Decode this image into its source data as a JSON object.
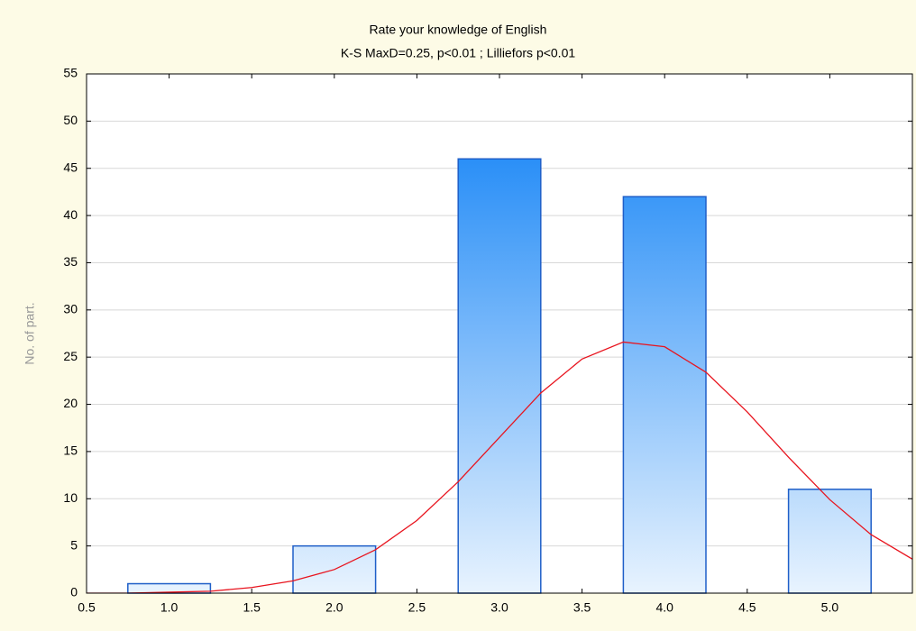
{
  "chart_data": {
    "type": "histogram",
    "title": "Rate your knowledge of English",
    "subtitle": "K-S MaxD=0.25, p<0.01 ; Lilliefors p<0.01",
    "y_label": "No. of part.",
    "x": [
      1.0,
      2.0,
      3.0,
      4.0,
      5.0
    ],
    "x_labels": [
      "1.0",
      "2.0",
      "3.0",
      "4.0",
      "5.0"
    ],
    "values": [
      1,
      5,
      46,
      42,
      11
    ],
    "color": "#2a8ff7",
    "edge_color": "#1f5fc8",
    "xlim": [
      0.5,
      5.5
    ],
    "xticks": [
      {
        "value": 0.5,
        "label": "0.5"
      },
      {
        "value": 1.0,
        "label": "1.0"
      },
      {
        "value": 1.5,
        "label": "1.5"
      },
      {
        "value": 2.0,
        "label": "2.0"
      },
      {
        "value": 2.5,
        "label": "2.5"
      },
      {
        "value": 3.0,
        "label": "3.0"
      },
      {
        "value": 3.5,
        "label": "3.5"
      },
      {
        "value": 4.0,
        "label": "4.0"
      },
      {
        "value": 4.5,
        "label": "4.5"
      },
      {
        "value": 5.0,
        "label": "5.0"
      }
    ],
    "ylim": [
      0,
      55
    ],
    "yticks": [
      0,
      5,
      10,
      15,
      20,
      25,
      30,
      35,
      40,
      45,
      50,
      55
    ],
    "grid": true,
    "fit_curve": {
      "color": "#e8141e",
      "x": [
        0.5,
        0.75,
        1.0,
        1.25,
        1.5,
        1.75,
        2.0,
        2.25,
        2.5,
        2.75,
        3.0,
        3.25,
        3.5,
        3.75,
        4.0,
        4.25,
        4.5,
        4.75,
        5.0,
        5.25,
        5.5
      ],
      "values": [
        0.0,
        0.0,
        0.1,
        0.2,
        0.6,
        1.3,
        2.5,
        4.6,
        7.7,
        11.8,
        16.5,
        21.2,
        24.8,
        26.6,
        26.1,
        23.4,
        19.2,
        14.4,
        9.9,
        6.2,
        3.6
      ]
    }
  }
}
